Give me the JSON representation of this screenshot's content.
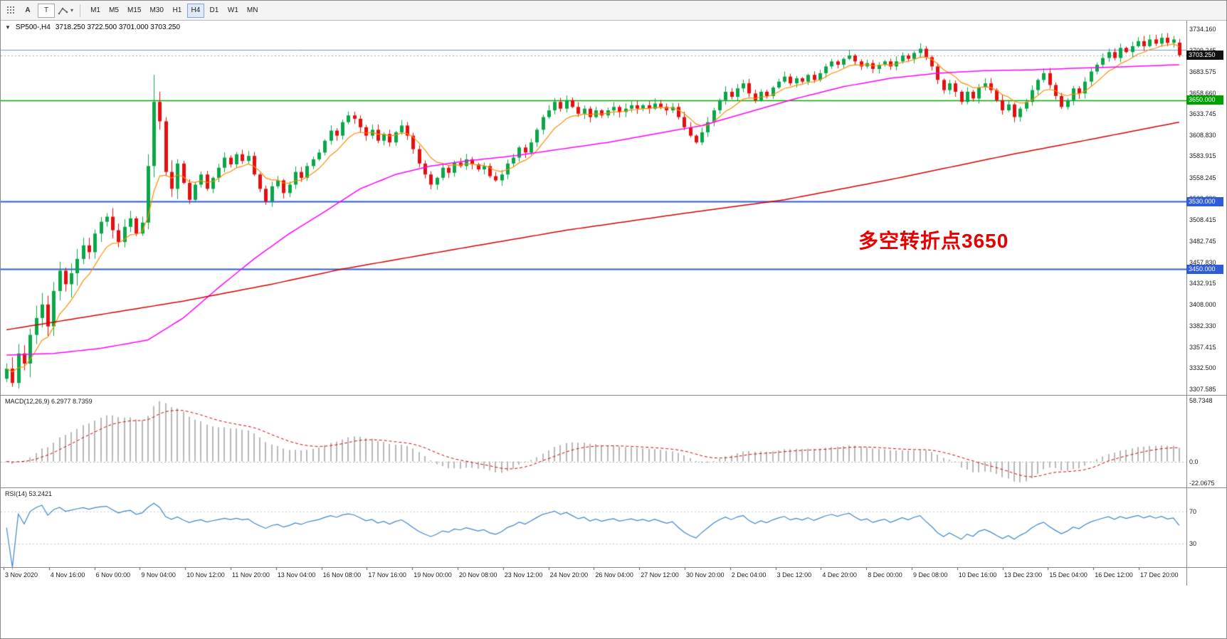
{
  "header": {
    "symbol": "SP500-,H4",
    "ohlc": "3718.250 3722.500 3701.000 3703.250",
    "collapse_icon": "▼"
  },
  "annotation": {
    "text": "多空转折点3650",
    "color": "#e60000"
  },
  "toolbar": {
    "a_button": "A",
    "t_button": "T",
    "caret": "▾",
    "timeframes": [
      "M1",
      "M5",
      "M15",
      "M30",
      "H1",
      "H4",
      "D1",
      "W1",
      "MN"
    ],
    "active_timeframe": "H4"
  },
  "chart_data": {
    "type": "candlestick",
    "title": "SP500-,H4",
    "symbol": "SP500-",
    "timeframe": "H4",
    "last_bar": {
      "open": 3718.25,
      "high": 3722.5,
      "low": 3701.0,
      "close": 3703.25
    },
    "ylim": [
      3307.585,
      3734.16
    ],
    "y_ticks": [
      3734.16,
      3709.245,
      3683.575,
      3658.66,
      3633.745,
      3608.83,
      3583.915,
      3558.245,
      3533.33,
      3508.415,
      3482.745,
      3457.83,
      3432.915,
      3408.0,
      3382.33,
      3357.415,
      3332.5,
      3307.585
    ],
    "x_labels": [
      "3 Nov 2020",
      "4 Nov 16:00",
      "6 Nov 00:00",
      "9 Nov 04:00",
      "10 Nov 12:00",
      "11 Nov 20:00",
      "13 Nov 04:00",
      "16 Nov 08:00",
      "17 Nov 16:00",
      "19 Nov 00:00",
      "20 Nov 08:00",
      "23 Nov 12:00",
      "24 Nov 20:00",
      "26 Nov 04:00",
      "27 Nov 12:00",
      "30 Nov 20:00",
      "2 Dec 04:00",
      "3 Dec 12:00",
      "4 Dec 20:00",
      "8 Dec 00:00",
      "9 Dec 08:00",
      "10 Dec 16:00",
      "13 Dec 23:00",
      "15 Dec 04:00",
      "16 Dec 12:00",
      "17 Dec 20:00"
    ],
    "first_open": 3320,
    "closes": [
      3332,
      3315,
      3350,
      3338,
      3372,
      3392,
      3408,
      3382,
      3424,
      3448,
      3432,
      3445,
      3462,
      3478,
      3470,
      3492,
      3506,
      3512,
      3496,
      3482,
      3500,
      3510,
      3492,
      3505,
      3572,
      3648,
      3625,
      3565,
      3545,
      3575,
      3552,
      3532,
      3550,
      3562,
      3545,
      3558,
      3570,
      3582,
      3574,
      3586,
      3578,
      3584,
      3562,
      3545,
      3530,
      3548,
      3555,
      3540,
      3550,
      3565,
      3558,
      3572,
      3580,
      3588,
      3602,
      3614,
      3608,
      3624,
      3632,
      3628,
      3618,
      3608,
      3615,
      3602,
      3610,
      3600,
      3612,
      3620,
      3608,
      3592,
      3575,
      3562,
      3550,
      3558,
      3570,
      3564,
      3576,
      3572,
      3580,
      3574,
      3568,
      3572,
      3560,
      3555,
      3562,
      3575,
      3582,
      3594,
      3588,
      3600,
      3615,
      3630,
      3638,
      3648,
      3640,
      3650,
      3642,
      3634,
      3640,
      3630,
      3638,
      3632,
      3638,
      3642,
      3636,
      3640,
      3644,
      3640,
      3644,
      3640,
      3646,
      3642,
      3638,
      3642,
      3630,
      3618,
      3608,
      3600,
      3612,
      3624,
      3638,
      3650,
      3660,
      3654,
      3664,
      3670,
      3658,
      3650,
      3660,
      3655,
      3665,
      3672,
      3678,
      3670,
      3676,
      3672,
      3680,
      3674,
      3682,
      3690,
      3696,
      3692,
      3699,
      3703,
      3696,
      3690,
      3694,
      3687,
      3692,
      3696,
      3690,
      3696,
      3703,
      3699,
      3706,
      3711,
      3701,
      3690,
      3674,
      3662,
      3670,
      3660,
      3648,
      3660,
      3652,
      3665,
      3670,
      3662,
      3650,
      3638,
      3645,
      3630,
      3640,
      3648,
      3662,
      3674,
      3682,
      3668,
      3655,
      3642,
      3650,
      3664,
      3658,
      3672,
      3684,
      3692,
      3700,
      3707,
      3700,
      3712,
      3707,
      3714,
      3720,
      3714,
      3722,
      3717,
      3724,
      3718,
      3722,
      3703.25
    ],
    "wick_overrides": {
      "25": {
        "high": 3680
      },
      "199": {
        "open": 3718.25,
        "high": 3722.5,
        "low": 3701.0
      }
    },
    "volatility_zones": [
      {
        "from": 0,
        "to": 13,
        "mult": 3.0
      },
      {
        "from": 14,
        "to": 23,
        "mult": 1.8
      },
      {
        "from": 24,
        "to": 29,
        "mult": 2.6
      }
    ],
    "candle_colors": {
      "bull": "#0aa648",
      "bear": "#e60f0f"
    },
    "moving_averages": [
      {
        "name": "ma-fast",
        "mode": "ema",
        "period": 8,
        "color": "#ff8c00",
        "width": 1.2
      },
      {
        "name": "ma-mid",
        "mode": "anchors",
        "color": "#ff00ff",
        "width": 1.5,
        "anchors": [
          [
            0,
            3348
          ],
          [
            8,
            3350
          ],
          [
            16,
            3356
          ],
          [
            24,
            3366
          ],
          [
            30,
            3392
          ],
          [
            36,
            3428
          ],
          [
            42,
            3462
          ],
          [
            48,
            3492
          ],
          [
            54,
            3518
          ],
          [
            60,
            3545
          ],
          [
            66,
            3562
          ],
          [
            72,
            3572
          ],
          [
            78,
            3578
          ],
          [
            86,
            3584
          ],
          [
            94,
            3592
          ],
          [
            102,
            3600
          ],
          [
            110,
            3610
          ],
          [
            118,
            3620
          ],
          [
            126,
            3636
          ],
          [
            134,
            3652
          ],
          [
            142,
            3666
          ],
          [
            150,
            3676
          ],
          [
            158,
            3682
          ],
          [
            166,
            3685
          ],
          [
            174,
            3686
          ],
          [
            182,
            3688
          ],
          [
            191,
            3690
          ],
          [
            199,
            3692
          ]
        ]
      },
      {
        "name": "ma-slow",
        "mode": "anchors",
        "color": "#d40000",
        "width": 1.5,
        "anchors": [
          [
            0,
            3378
          ],
          [
            15,
            3395
          ],
          [
            30,
            3412
          ],
          [
            45,
            3432
          ],
          [
            57,
            3450
          ],
          [
            75,
            3472
          ],
          [
            95,
            3496
          ],
          [
            115,
            3516
          ],
          [
            132,
            3532
          ],
          [
            150,
            3556
          ],
          [
            170,
            3585
          ],
          [
            185,
            3605
          ],
          [
            199,
            3624
          ]
        ]
      }
    ],
    "horizontal_lines": [
      {
        "price": 3709.5,
        "color": "#6f96c8",
        "width": 1,
        "label": null,
        "badge_color": null
      },
      {
        "price": 3650.0,
        "color": "#00a800",
        "width": 1.4,
        "label": "3650.000",
        "badge_color": "#00a000"
      },
      {
        "price": 3530.0,
        "color": "#2e5bda",
        "width": 2,
        "label": "3530.000",
        "badge_color": "#2e5bda"
      },
      {
        "price": 3450.0,
        "color": "#2e5bda",
        "width": 2,
        "label": "3450.000",
        "badge_color": "#2e5bda"
      }
    ],
    "current_price": {
      "value": 3703.25,
      "label": "3703.250",
      "badge_color": "#111111"
    },
    "indicators": {
      "macd": {
        "label": "MACD(12,26,9) 6.2977 8.7359",
        "fast": 12,
        "slow": 26,
        "signal": 9,
        "range": {
          "max": 58.7348,
          "min": -22.0675
        },
        "axis_labels": [
          "58.7348",
          "0.0",
          "-22.0675"
        ],
        "hist_color": "#b8b8b8",
        "signal_color": "#d40000"
      },
      "rsi": {
        "label": "RSI(14) 53.2421",
        "period": 14,
        "levels": [
          70,
          30
        ],
        "axis_labels": [
          "70",
          "30"
        ],
        "line_color": "#3d85c8",
        "level_color": "#c8c8c8"
      }
    }
  }
}
